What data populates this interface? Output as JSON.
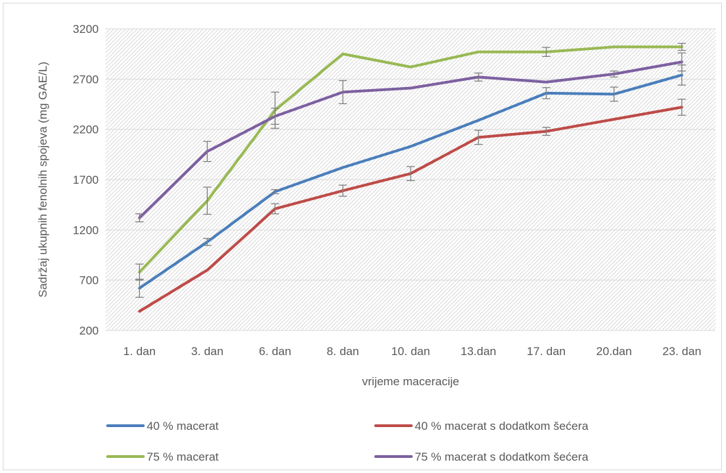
{
  "chart_data": {
    "type": "line",
    "title": "",
    "xlabel": "vrijeme maceracije",
    "ylabel": "Sadržaj ukupnih fenolnih spojeva (mg GAE/L)",
    "ylim": [
      200,
      3200
    ],
    "yticks": [
      200,
      700,
      1200,
      1700,
      2200,
      2700,
      3200
    ],
    "categories": [
      "1. dan",
      "3. dan",
      "6. dan",
      "8. dan",
      "10. dan",
      "13.dan",
      "17. dan",
      "20.dan",
      "23. dan"
    ],
    "grid": true,
    "legend_position": "bottom",
    "series": [
      {
        "name": "40 % macerat",
        "color": "#4a7ebb",
        "values": [
          620,
          1080,
          1580,
          1820,
          2030,
          2290,
          2560,
          2550,
          2740
        ],
        "errors": [
          90,
          35,
          20,
          0,
          0,
          0,
          55,
          70,
          100
        ]
      },
      {
        "name": "40 % macerat s dodatkom šećera",
        "color": "#be4b48",
        "values": [
          390,
          800,
          1410,
          1590,
          1760,
          2120,
          2180,
          2300,
          2420
        ],
        "errors": [
          0,
          0,
          50,
          55,
          70,
          70,
          40,
          0,
          80
        ]
      },
      {
        "name": "75 % macerat",
        "color": "#98b954",
        "values": [
          780,
          1490,
          2390,
          2950,
          2820,
          2970,
          2970,
          3020,
          3020
        ],
        "errors": [
          80,
          135,
          180,
          0,
          0,
          0,
          45,
          0,
          35
        ]
      },
      {
        "name": "75 % macerat s dodatkom šećera",
        "color": "#7d60a0",
        "values": [
          1320,
          1980,
          2330,
          2570,
          2610,
          2720,
          2670,
          2750,
          2870
        ],
        "errors": [
          40,
          100,
          80,
          115,
          0,
          40,
          0,
          30,
          90
        ]
      }
    ]
  }
}
